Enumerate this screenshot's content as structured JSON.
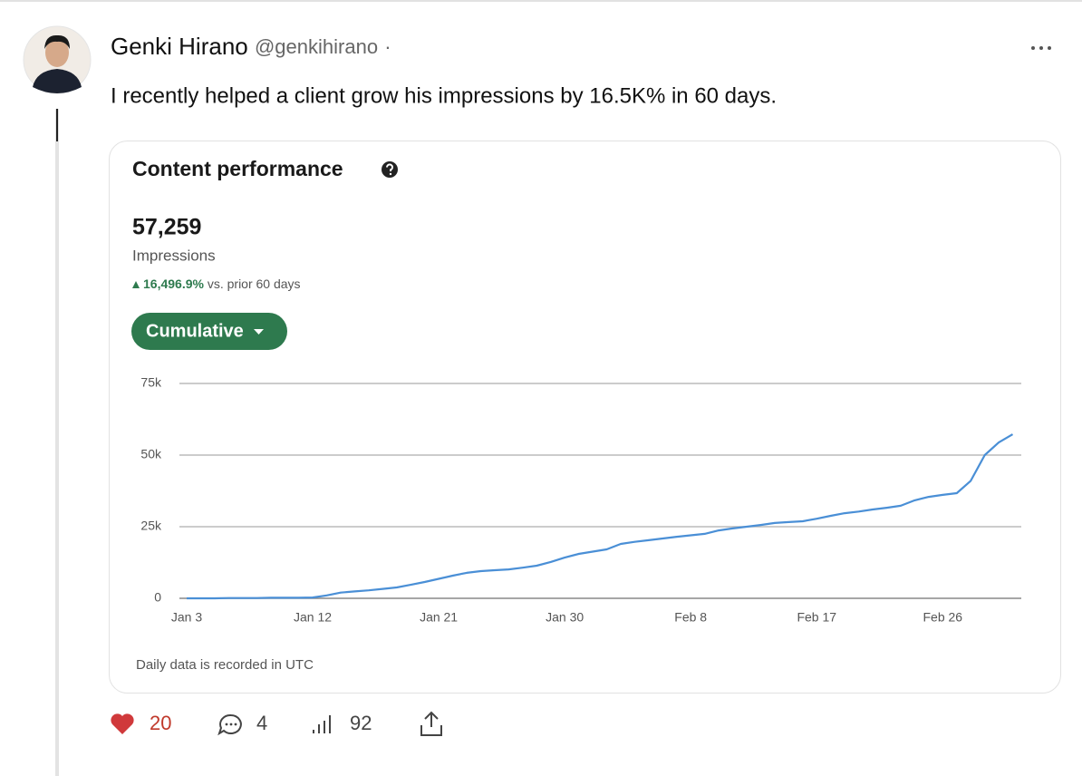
{
  "post": {
    "author": "Genki Hirano",
    "handle": "@genkihirano",
    "separator": "·",
    "text": "I recently helped a client grow his impressions by 16.5K% in 60 days.",
    "likes": 20,
    "replies": 4,
    "views": 92
  },
  "card": {
    "title": "Content performance",
    "total": "57,259",
    "metric": "Impressions",
    "change": "16,496.9%",
    "change_note": "vs. prior 60 days",
    "button": "Cumulative",
    "footnote": "Daily data is recorded in UTC"
  },
  "chart_data": {
    "type": "line",
    "categories": [
      "Jan 3",
      null,
      null,
      null,
      null,
      null,
      null,
      null,
      null,
      "Jan 12",
      null,
      null,
      null,
      null,
      null,
      null,
      null,
      null,
      "Jan 21",
      null,
      null,
      null,
      null,
      null,
      null,
      null,
      null,
      "Jan 30",
      null,
      null,
      null,
      null,
      null,
      null,
      null,
      null,
      "Feb 8",
      null,
      null,
      null,
      null,
      null,
      null,
      null,
      null,
      "Feb 17",
      null,
      null,
      null,
      null,
      null,
      null,
      null,
      null,
      "Feb 26",
      null,
      null,
      null,
      null,
      null
    ],
    "series": [
      {
        "name": "Impressions",
        "color": "#4a8fd6",
        "values": [
          0,
          0,
          0,
          100,
          100,
          100,
          200,
          200,
          200,
          300,
          1000,
          2000,
          2400,
          2800,
          3300,
          3800,
          4700,
          5700,
          6800,
          7900,
          8900,
          9500,
          9800,
          10100,
          10700,
          11400,
          12700,
          14200,
          15500,
          16300,
          17100,
          19000,
          19700,
          20300,
          20900,
          21500,
          22000,
          22500,
          23700,
          24400,
          25000,
          25600,
          26300,
          26600,
          26900,
          27800,
          28800,
          29700,
          30300,
          31000,
          31600,
          32300,
          34200,
          35400,
          36100,
          36700,
          41000,
          50000,
          54400,
          57259
        ]
      }
    ],
    "ylim": [
      0,
      75000
    ],
    "yticks": [
      0,
      {
        "value": 25000,
        "label": "25k"
      },
      {
        "value": 50000,
        "label": "50k"
      },
      {
        "value": 75000,
        "label": "75k"
      }
    ],
    "grid": true
  }
}
